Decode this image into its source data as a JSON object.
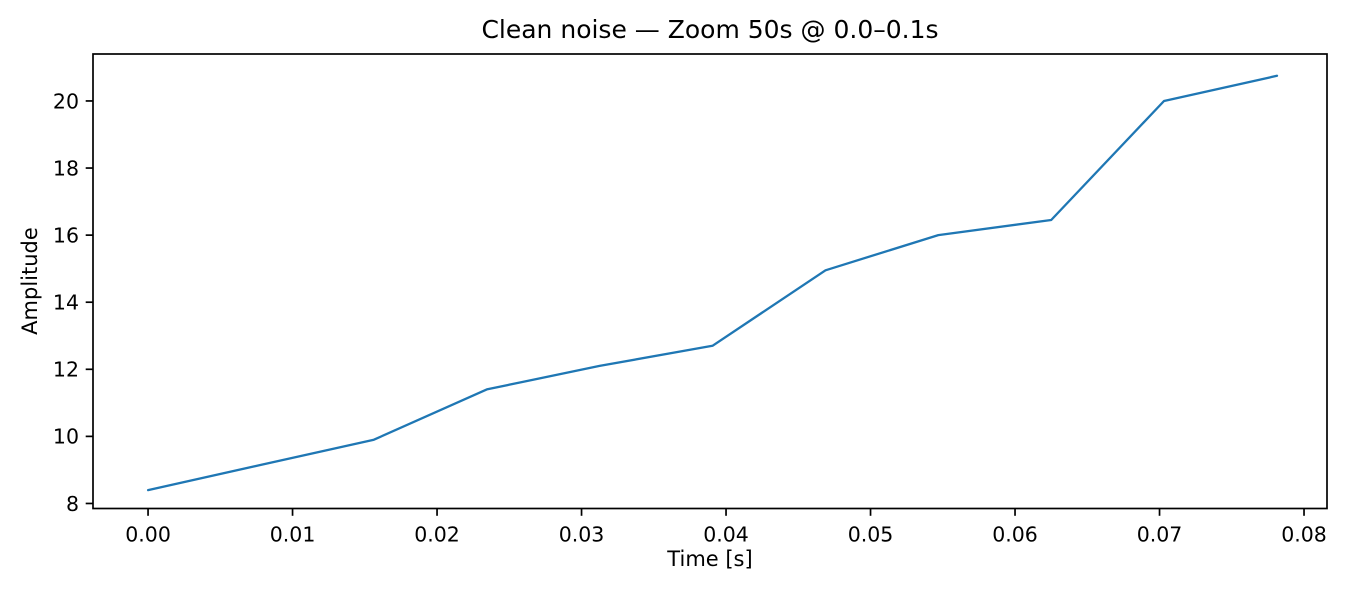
{
  "figure": {
    "background_color": "#ffffff",
    "text_color": "#000000",
    "spine_color": "#000000"
  },
  "chart_data": {
    "type": "line",
    "title": "Clean noise — Zoom 50s @ 0.0–0.1s",
    "xlabel": "Time [s]",
    "ylabel": "Amplitude",
    "x": [
      0.0,
      0.00781,
      0.01563,
      0.02344,
      0.03125,
      0.03906,
      0.04688,
      0.05469,
      0.0625,
      0.07031,
      0.07813
    ],
    "y": [
      8.4,
      9.15,
      9.9,
      11.4,
      12.1,
      12.7,
      14.95,
      16.0,
      16.45,
      20.0,
      20.75
    ],
    "xlim": [
      -0.00381,
      0.08159
    ],
    "ylim": [
      7.85,
      21.4
    ],
    "xticks": [
      0.0,
      0.01,
      0.02,
      0.03,
      0.04,
      0.05,
      0.06,
      0.07,
      0.08
    ],
    "xtick_labels": [
      "0.00",
      "0.01",
      "0.02",
      "0.03",
      "0.04",
      "0.05",
      "0.06",
      "0.07",
      "0.08"
    ],
    "yticks": [
      8,
      10,
      12,
      14,
      16,
      18,
      20
    ],
    "ytick_labels": [
      "8",
      "10",
      "12",
      "14",
      "16",
      "18",
      "20"
    ],
    "line_color": "#1f77b4",
    "marker": "none",
    "grid": false,
    "legend": "none"
  }
}
